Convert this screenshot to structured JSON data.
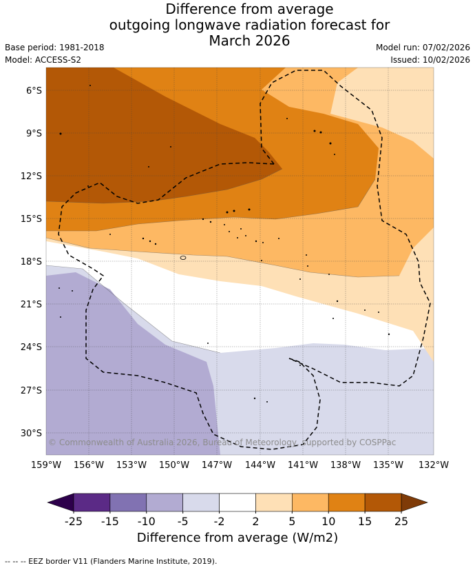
{
  "header": {
    "title_lines": [
      "Difference from average",
      "outgoing longwave radiation forecast for",
      "March 2026"
    ],
    "base_period": "Base period: 1981-2018",
    "model": "Model: ACCESS-S2",
    "model_run": "Model run: 07/02/2026",
    "issued": "Issued: 10/02/2026"
  },
  "map": {
    "lat_labels": [
      "6°S",
      "9°S",
      "12°S",
      "15°S",
      "18°S",
      "21°S",
      "24°S",
      "27°S",
      "30°S"
    ],
    "lon_labels": [
      "159°W",
      "156°W",
      "153°W",
      "150°W",
      "147°W",
      "144°W",
      "141°W",
      "138°W",
      "135°W",
      "132°W"
    ],
    "copyright": "© Commonwealth of Australia 2026, Bureau of Meteorology, supported by COSPPac"
  },
  "colorbar": {
    "ticks": [
      "-25",
      "-15",
      "-10",
      "-5",
      "-2",
      "2",
      "5",
      "10",
      "15",
      "25"
    ],
    "colors": {
      "under": "#2d004b",
      "bins": [
        "#5b2a86",
        "#8172b2",
        "#b2abd2",
        "#d8daeb",
        "#ffffff",
        "#fee0b6",
        "#fdb863",
        "#e08214",
        "#b35806"
      ],
      "over": "#7f3b08"
    },
    "title": "Difference from average (W/m2)"
  },
  "footer": {
    "legend_text": "-- -- -- EEZ border V11 (Flanders Marine Institute, 2019)."
  }
}
